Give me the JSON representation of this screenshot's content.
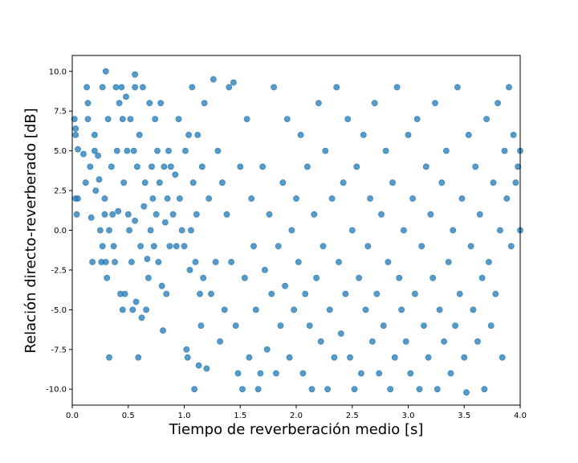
{
  "chart_data": {
    "type": "scatter",
    "title": "",
    "xlabel": "Tiempo de reverberación medio [s]",
    "ylabel": "Relación directo-reverberado [dB]",
    "xlim": [
      0.0,
      4.0
    ],
    "ylim": [
      -11.0,
      11.0
    ],
    "xticks": [
      "0.0",
      "0.5",
      "1.0",
      "1.5",
      "2.0",
      "2.5",
      "3.0",
      "3.5",
      "4.0"
    ],
    "yticks": [
      "-10.0",
      "-7.5",
      "-5.0",
      "-2.5",
      "0.0",
      "2.5",
      "5.0",
      "7.5",
      "10.0"
    ],
    "grid": false,
    "marker_color": "#1f77b4",
    "marker_alpha": 0.75,
    "points_note": "dense scatter, values sampled below",
    "points": [
      [
        0.02,
        7.0
      ],
      [
        0.03,
        6.4
      ],
      [
        0.03,
        6.0
      ],
      [
        0.05,
        5.1
      ],
      [
        0.03,
        2.0
      ],
      [
        0.05,
        2.0
      ],
      [
        0.04,
        1.0
      ],
      [
        0.1,
        4.8
      ],
      [
        0.12,
        3.0
      ],
      [
        0.13,
        9.0
      ],
      [
        0.14,
        8.0
      ],
      [
        0.14,
        7.0
      ],
      [
        0.16,
        4.0
      ],
      [
        0.17,
        0.8
      ],
      [
        0.18,
        -2.0
      ],
      [
        0.2,
        6.0
      ],
      [
        0.2,
        5.0
      ],
      [
        0.21,
        2.5
      ],
      [
        0.23,
        4.7
      ],
      [
        0.24,
        3.2
      ],
      [
        0.25,
        0.0
      ],
      [
        0.26,
        -2.0
      ],
      [
        0.27,
        9.0
      ],
      [
        0.27,
        -1.0
      ],
      [
        0.29,
        2.0
      ],
      [
        0.29,
        1.0
      ],
      [
        0.3,
        10.0
      ],
      [
        0.3,
        -2.0
      ],
      [
        0.31,
        -3.0
      ],
      [
        0.32,
        7.0
      ],
      [
        0.33,
        0.0
      ],
      [
        0.33,
        -8.0
      ],
      [
        0.35,
        4.0
      ],
      [
        0.36,
        1.0
      ],
      [
        0.37,
        -1.0
      ],
      [
        0.38,
        -2.0
      ],
      [
        0.39,
        9.0
      ],
      [
        0.4,
        5.0
      ],
      [
        0.41,
        1.2
      ],
      [
        0.42,
        8.0
      ],
      [
        0.43,
        -4.0
      ],
      [
        0.44,
        9.0
      ],
      [
        0.45,
        7.0
      ],
      [
        0.45,
        -5.0
      ],
      [
        0.46,
        3.0
      ],
      [
        0.47,
        -4.0
      ],
      [
        0.48,
        8.4
      ],
      [
        0.49,
        5.0
      ],
      [
        0.5,
        1.0
      ],
      [
        0.51,
        0.0
      ],
      [
        0.52,
        7.0
      ],
      [
        0.53,
        -2.0
      ],
      [
        0.54,
        -5.0
      ],
      [
        0.55,
        5.0
      ],
      [
        0.56,
        9.0
      ],
      [
        0.56,
        9.8
      ],
      [
        0.56,
        0.6
      ],
      [
        0.57,
        -4.5
      ],
      [
        0.58,
        4.0
      ],
      [
        0.59,
        -8.0
      ],
      [
        0.6,
        6.0
      ],
      [
        0.61,
        -1.0
      ],
      [
        0.62,
        -5.5
      ],
      [
        0.63,
        9.0
      ],
      [
        0.64,
        1.5
      ],
      [
        0.65,
        3.0
      ],
      [
        0.66,
        -5.0
      ],
      [
        0.67,
        -1.8
      ],
      [
        0.68,
        -3.0
      ],
      [
        0.69,
        8.0
      ],
      [
        0.7,
        0.0
      ],
      [
        0.71,
        4.0
      ],
      [
        0.72,
        2.0
      ],
      [
        0.73,
        -1.0
      ],
      [
        0.74,
        7.0
      ],
      [
        0.75,
        1.0
      ],
      [
        0.76,
        5.0
      ],
      [
        0.77,
        -2.0
      ],
      [
        0.78,
        3.0
      ],
      [
        0.79,
        8.0
      ],
      [
        0.8,
        -3.5
      ],
      [
        0.81,
        -6.3
      ],
      [
        0.82,
        4.0
      ],
      [
        0.83,
        0.5
      ],
      [
        0.84,
        -4.0
      ],
      [
        0.85,
        2.0
      ],
      [
        0.86,
        5.0
      ],
      [
        0.87,
        -1.0
      ],
      [
        0.88,
        4.0
      ],
      [
        0.9,
        1.0
      ],
      [
        0.92,
        3.5
      ],
      [
        0.93,
        -1.0
      ],
      [
        0.95,
        7.0
      ],
      [
        0.96,
        2.0
      ],
      [
        0.98,
        0.0
      ],
      [
        1.0,
        -1.0
      ],
      [
        1.01,
        5.0
      ],
      [
        1.02,
        -7.5
      ],
      [
        1.03,
        -8.0
      ],
      [
        1.04,
        6.0
      ],
      [
        1.05,
        -2.5
      ],
      [
        1.06,
        0.0
      ],
      [
        1.07,
        9.0
      ],
      [
        1.08,
        3.0
      ],
      [
        1.09,
        -10.0
      ],
      [
        1.1,
        -2.0
      ],
      [
        1.11,
        1.0
      ],
      [
        1.12,
        6.0
      ],
      [
        1.13,
        -8.5
      ],
      [
        1.14,
        -4.0
      ],
      [
        1.15,
        -6.0
      ],
      [
        1.16,
        4.0
      ],
      [
        1.17,
        -3.0
      ],
      [
        1.18,
        8.0
      ],
      [
        1.2,
        -8.7
      ],
      [
        1.22,
        2.0
      ],
      [
        1.24,
        -4.0
      ],
      [
        1.26,
        9.5
      ],
      [
        1.28,
        -2.0
      ],
      [
        1.3,
        5.0
      ],
      [
        1.32,
        -7.0
      ],
      [
        1.34,
        3.0
      ],
      [
        1.36,
        -5.0
      ],
      [
        1.38,
        1.0
      ],
      [
        1.4,
        9.0
      ],
      [
        1.42,
        -2.0
      ],
      [
        1.44,
        9.3
      ],
      [
        1.46,
        -6.0
      ],
      [
        1.48,
        -9.0
      ],
      [
        1.5,
        4.0
      ],
      [
        1.52,
        -10.0
      ],
      [
        1.54,
        -3.0
      ],
      [
        1.56,
        7.0
      ],
      [
        1.58,
        -8.0
      ],
      [
        1.6,
        2.0
      ],
      [
        1.62,
        -1.0
      ],
      [
        1.64,
        -5.0
      ],
      [
        1.66,
        -10.0
      ],
      [
        1.68,
        -9.0
      ],
      [
        1.7,
        4.0
      ],
      [
        1.72,
        -2.5
      ],
      [
        1.74,
        -7.5
      ],
      [
        1.76,
        1.0
      ],
      [
        1.78,
        -4.0
      ],
      [
        1.8,
        9.0
      ],
      [
        1.82,
        -9.0
      ],
      [
        1.84,
        -1.0
      ],
      [
        1.86,
        -6.0
      ],
      [
        1.88,
        3.0
      ],
      [
        1.9,
        -3.5
      ],
      [
        1.92,
        7.0
      ],
      [
        1.94,
        -8.0
      ],
      [
        1.96,
        0.0
      ],
      [
        1.98,
        -5.0
      ],
      [
        2.0,
        2.0
      ],
      [
        2.02,
        -2.0
      ],
      [
        2.04,
        6.0
      ],
      [
        2.06,
        -9.0
      ],
      [
        2.08,
        -4.0
      ],
      [
        2.1,
        4.0
      ],
      [
        2.12,
        -6.0
      ],
      [
        2.14,
        -10.0
      ],
      [
        2.16,
        1.0
      ],
      [
        2.18,
        -3.0
      ],
      [
        2.2,
        8.0
      ],
      [
        2.22,
        -7.0
      ],
      [
        2.24,
        -1.0
      ],
      [
        2.26,
        5.0
      ],
      [
        2.28,
        -10.0
      ],
      [
        2.3,
        -5.0
      ],
      [
        2.32,
        2.0
      ],
      [
        2.34,
        -8.0
      ],
      [
        2.36,
        9.0
      ],
      [
        2.38,
        -2.0
      ],
      [
        2.4,
        -6.5
      ],
      [
        2.42,
        3.0
      ],
      [
        2.44,
        -4.0
      ],
      [
        2.46,
        7.0
      ],
      [
        2.48,
        -8.0
      ],
      [
        2.5,
        0.0
      ],
      [
        2.52,
        -10.0
      ],
      [
        2.54,
        4.0
      ],
      [
        2.56,
        -3.0
      ],
      [
        2.58,
        -9.0
      ],
      [
        2.6,
        6.0
      ],
      [
        2.62,
        -5.0
      ],
      [
        2.64,
        -1.0
      ],
      [
        2.66,
        2.0
      ],
      [
        2.68,
        -7.0
      ],
      [
        2.7,
        8.0
      ],
      [
        2.72,
        -4.0
      ],
      [
        2.74,
        -9.0
      ],
      [
        2.76,
        1.0
      ],
      [
        2.78,
        -6.0
      ],
      [
        2.8,
        5.0
      ],
      [
        2.82,
        -2.0
      ],
      [
        2.84,
        -10.0
      ],
      [
        2.86,
        3.0
      ],
      [
        2.88,
        -8.0
      ],
      [
        2.9,
        9.0
      ],
      [
        2.92,
        -3.0
      ],
      [
        2.94,
        -5.0
      ],
      [
        2.96,
        0.0
      ],
      [
        2.98,
        -7.0
      ],
      [
        3.0,
        6.0
      ],
      [
        3.02,
        -9.0
      ],
      [
        3.04,
        2.0
      ],
      [
        3.06,
        -4.0
      ],
      [
        3.08,
        7.0
      ],
      [
        3.1,
        -10.0
      ],
      [
        3.12,
        -1.0
      ],
      [
        3.14,
        -6.0
      ],
      [
        3.16,
        4.0
      ],
      [
        3.18,
        -8.0
      ],
      [
        3.2,
        1.0
      ],
      [
        3.22,
        -3.0
      ],
      [
        3.24,
        8.0
      ],
      [
        3.26,
        -10.0
      ],
      [
        3.28,
        -5.0
      ],
      [
        3.3,
        3.0
      ],
      [
        3.32,
        -7.0
      ],
      [
        3.34,
        5.0
      ],
      [
        3.36,
        -2.0
      ],
      [
        3.38,
        -9.0
      ],
      [
        3.4,
        0.0
      ],
      [
        3.42,
        -6.0
      ],
      [
        3.44,
        9.0
      ],
      [
        3.46,
        -4.0
      ],
      [
        3.48,
        2.0
      ],
      [
        3.5,
        -8.0
      ],
      [
        3.52,
        -10.2
      ],
      [
        3.54,
        6.0
      ],
      [
        3.56,
        -1.0
      ],
      [
        3.58,
        -5.0
      ],
      [
        3.6,
        4.0
      ],
      [
        3.62,
        -7.0
      ],
      [
        3.64,
        1.0
      ],
      [
        3.66,
        -3.0
      ],
      [
        3.68,
        -10.0
      ],
      [
        3.7,
        7.0
      ],
      [
        3.72,
        -2.0
      ],
      [
        3.74,
        -6.0
      ],
      [
        3.76,
        3.0
      ],
      [
        3.78,
        -4.0
      ],
      [
        3.8,
        8.0
      ],
      [
        3.82,
        0.0
      ],
      [
        3.84,
        -8.0
      ],
      [
        3.86,
        5.0
      ],
      [
        3.88,
        2.0
      ],
      [
        3.9,
        9.0
      ],
      [
        3.92,
        -1.0
      ],
      [
        3.94,
        6.0
      ],
      [
        3.96,
        3.0
      ],
      [
        3.98,
        4.0
      ],
      [
        4.0,
        0.0
      ],
      [
        4.0,
        5.0
      ]
    ]
  }
}
